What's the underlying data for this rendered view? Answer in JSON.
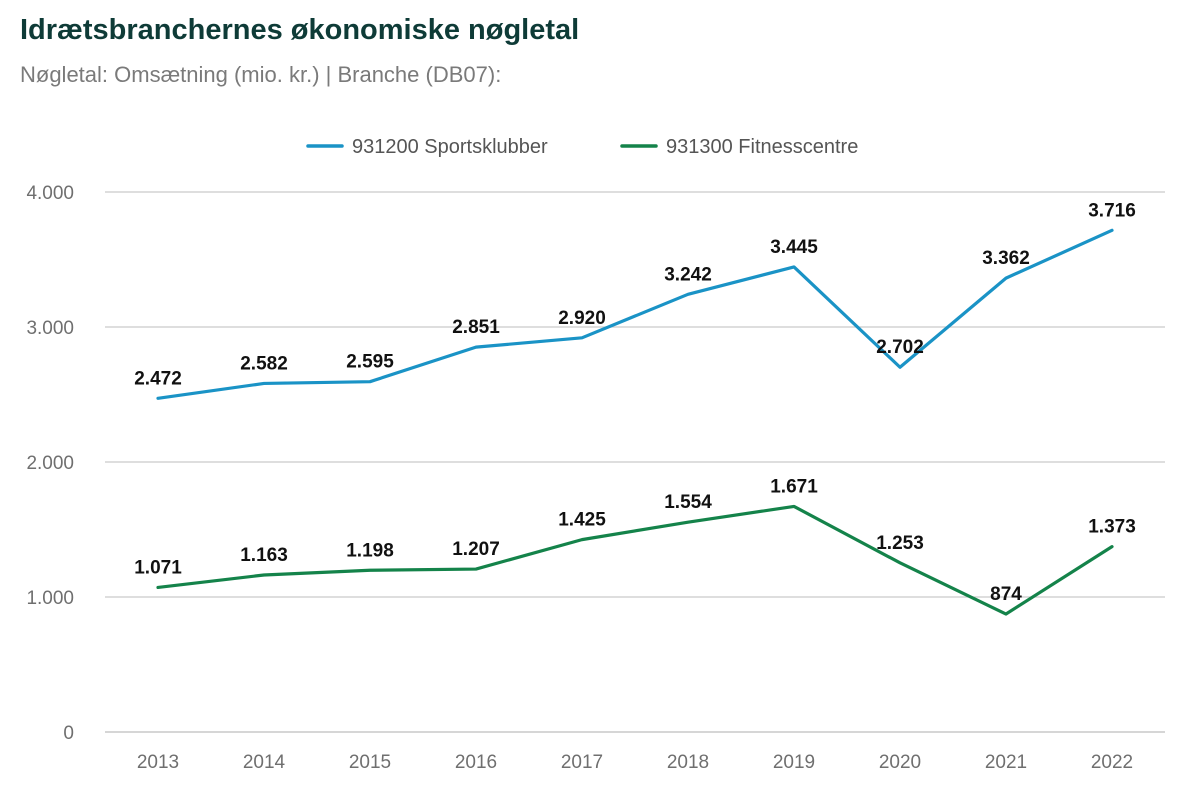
{
  "header": {
    "title": "Idrætsbranchernes økonomiske nøgletal",
    "subtitle": "Nøgletal: Omsætning (mio. kr.) | Branche (DB07):"
  },
  "chart_data": {
    "type": "line",
    "title": "Idrætsbranchernes økonomiske nøgletal",
    "subtitle": "Nøgletal: Omsætning (mio. kr.) | Branche (DB07):",
    "xlabel": "",
    "ylabel": "",
    "categories": [
      "2013",
      "2014",
      "2015",
      "2016",
      "2017",
      "2018",
      "2019",
      "2020",
      "2021",
      "2022"
    ],
    "ylim": [
      0,
      4000
    ],
    "yticks": [
      0,
      1000,
      2000,
      3000,
      4000
    ],
    "ytick_labels": [
      "0",
      "1.000",
      "2.000",
      "3.000",
      "4.000"
    ],
    "grid": true,
    "legend_position": "top-center",
    "series": [
      {
        "name": "931200 Sportsklubber",
        "color": "#1a93c6",
        "values": [
          2472,
          2582,
          2595,
          2851,
          2920,
          3242,
          3445,
          2702,
          3362,
          3716
        ],
        "labels": [
          "2.472",
          "2.582",
          "2.595",
          "2.851",
          "2.920",
          "3.242",
          "3.445",
          "2.702",
          "3.362",
          "3.716"
        ]
      },
      {
        "name": "931300 Fitnesscentre",
        "color": "#14834a",
        "values": [
          1071,
          1163,
          1198,
          1207,
          1425,
          1554,
          1671,
          1253,
          874,
          1373
        ],
        "labels": [
          "1.071",
          "1.163",
          "1.198",
          "1.207",
          "1.425",
          "1.554",
          "1.671",
          "1.253",
          "874",
          "1.373"
        ]
      }
    ]
  }
}
